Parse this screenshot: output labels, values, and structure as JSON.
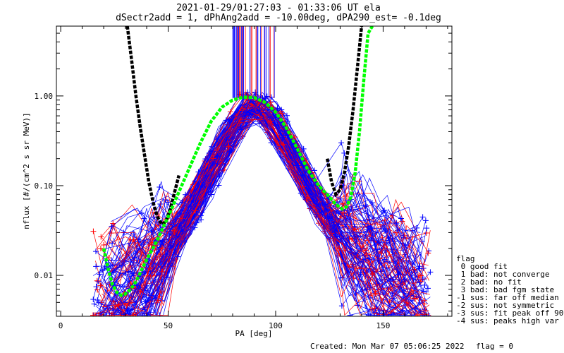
{
  "chart_data": {
    "type": "scatter",
    "title": "2021-01-29/01:27:03 - 01:33:06 UT ela",
    "subtitle": "dSectr2add = 1, dPhAng2add = -10.00deg, dPA290_est=  -0.1deg",
    "xlabel": "PA [deg]",
    "ylabel": "nflux [#/(cm^2 s sr MeV)]",
    "xlim": [
      -2,
      182
    ],
    "ylim": [
      0.0035,
      6.0
    ],
    "yscale": "log",
    "x_ticks": [
      0,
      50,
      100,
      150
    ],
    "y_ticks": [
      {
        "value": 1.0,
        "label": "1.00"
      },
      {
        "value": 0.1,
        "label": "0.10"
      },
      {
        "value": 0.01,
        "label": "0.01"
      }
    ],
    "grid": false,
    "legend_placement": "bottom-right",
    "colors": {
      "red": "#ff0000",
      "blue": "#0000ff",
      "green": "#00ff00",
      "black": "#000000"
    },
    "series": [
      {
        "color": "#000000",
        "style": "dashed",
        "x": [
          31,
          33,
          35,
          37,
          39,
          41,
          43,
          45,
          47,
          49,
          51,
          53,
          55
        ],
        "y": [
          6.0,
          2.5,
          1.0,
          0.45,
          0.22,
          0.11,
          0.065,
          0.045,
          0.037,
          0.04,
          0.055,
          0.085,
          0.13
        ]
      },
      {
        "color": "#000000",
        "style": "dashed",
        "x": [
          124,
          126,
          128,
          130,
          132,
          134,
          136,
          138,
          140
        ],
        "y": [
          0.2,
          0.11,
          0.08,
          0.09,
          0.14,
          0.28,
          0.7,
          2.0,
          6.0
        ]
      },
      {
        "color": "#00ff00",
        "style": "dashed",
        "x": [
          20,
          22,
          24,
          26,
          28,
          30,
          32,
          34,
          36,
          38,
          40,
          45,
          50,
          55,
          60,
          65,
          70,
          75,
          80,
          85,
          90,
          95,
          100,
          105,
          110,
          115,
          120,
          125,
          128,
          131,
          133,
          135,
          137,
          139,
          141,
          143,
          145
        ],
        "y": [
          0.02,
          0.012,
          0.008,
          0.0065,
          0.006,
          0.0062,
          0.0068,
          0.0078,
          0.0095,
          0.012,
          0.015,
          0.025,
          0.045,
          0.085,
          0.16,
          0.3,
          0.52,
          0.75,
          0.9,
          0.97,
          0.96,
          0.85,
          0.66,
          0.44,
          0.26,
          0.15,
          0.1,
          0.075,
          0.062,
          0.055,
          0.058,
          0.075,
          0.14,
          0.4,
          1.5,
          5.0,
          6.0
        ]
      },
      {
        "name": "flag",
        "color": "#0000ff",
        "x": [
          0,
          20,
          30,
          40,
          50,
          60,
          70,
          80,
          90,
          100,
          110,
          120,
          130,
          140,
          150,
          160,
          170,
          180
        ],
        "y": [
          0.004,
          0.005,
          0.006,
          0.009,
          0.02,
          0.05,
          0.15,
          0.45,
          0.95,
          0.5,
          0.17,
          0.06,
          0.03,
          0.018,
          0.012,
          0.008,
          0.006,
          0.005
        ]
      }
    ],
    "legend": {
      "title": "flag",
      "entries": [
        " 0 good fit",
        " 1 bad: not converge",
        " 2 bad: no fit",
        " 3 bad: bad fgm state",
        "-1 sus: far off median",
        "-2 sus: not symmetric",
        "-3 sus: fit peak off 90",
        "-4 sus: peaks high var"
      ]
    },
    "footer": {
      "created": "Created: Mon Mar 07 05:06:25 2022",
      "flag": "flag = 0"
    }
  }
}
